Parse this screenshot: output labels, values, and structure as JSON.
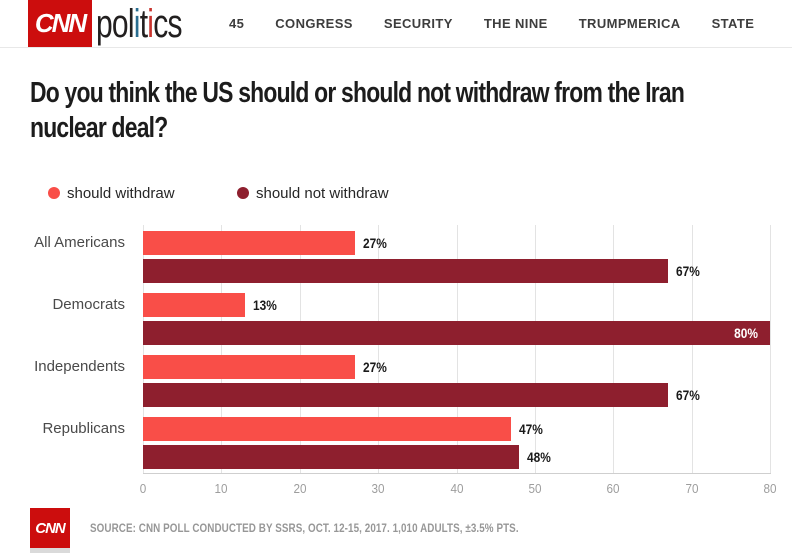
{
  "header": {
    "logo_text": "CNN",
    "wordmark_segments": [
      {
        "text": "pol",
        "color": "#221f1f"
      },
      {
        "text": "i",
        "color": "#2a6e91"
      },
      {
        "text": "t",
        "color": "#221f1f"
      },
      {
        "text": "i",
        "color": "#c9342e"
      },
      {
        "text": "cs",
        "color": "#221f1f"
      }
    ],
    "nav_items": [
      {
        "label": "45"
      },
      {
        "label": "CONGRESS"
      },
      {
        "label": "SECURITY"
      },
      {
        "label": "THE NINE"
      },
      {
        "label": "TRUMPMERICA"
      },
      {
        "label": "STATE"
      }
    ]
  },
  "title": "Do you think the US should or should not withdraw from the Iran nuclear deal?",
  "chart_data": {
    "type": "bar",
    "orientation": "horizontal",
    "title": "Do you think the US should or should not withdraw from the Iran nuclear deal?",
    "categories": [
      "All Americans",
      "Democrats",
      "Independents",
      "Republicans"
    ],
    "series": [
      {
        "name": "should withdraw",
        "color": "#f94e48",
        "values": [
          27,
          13,
          27,
          47
        ]
      },
      {
        "name": "should not withdraw",
        "color": "#8e1f2e",
        "values": [
          67,
          80,
          67,
          48
        ]
      }
    ],
    "value_suffix": "%",
    "xlim": [
      0,
      80
    ],
    "x_ticks": [
      0,
      10,
      20,
      30,
      40,
      50,
      60,
      70,
      80
    ],
    "grid": true,
    "legend_position": "top-left"
  },
  "footer": {
    "logo_text": "CNN",
    "source_text": "SOURCE: CNN POLL CONDUCTED BY SSRS, OCT. 12-15, 2017. 1,010 ADULTS, ±3.5% PTS."
  },
  "colors": {
    "brand_red": "#cc0d0d",
    "should_withdraw": "#f94e48",
    "should_not_withdraw": "#8e1f2e"
  }
}
